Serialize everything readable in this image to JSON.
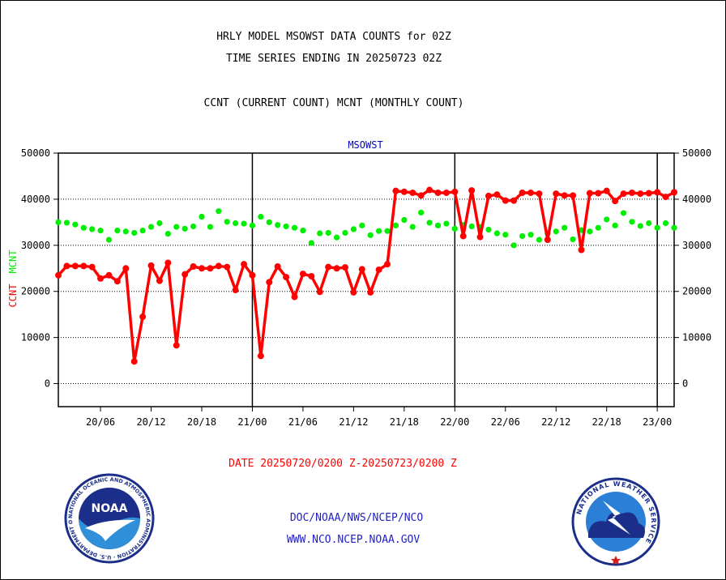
{
  "header": {
    "line1": "HRLY MODEL MSOWST DATA COUNTS for 02Z",
    "line2": "TIME SERIES ENDING IN 20250723 02Z",
    "line3": "CCNT (CURRENT COUNT) MCNT (MONTHLY COUNT)"
  },
  "footer": {
    "date_range": "DATE 20250720/0200 Z-20250723/0200 Z",
    "org": "DOC/NOAA/NWS/NCEP/NCO",
    "url": "WWW.NCO.NCEP.NOAA.GOV"
  },
  "logos": {
    "noaa": {
      "icon": "noaa-logo-icon",
      "text": "NOAA",
      "ring_text": "NATIONAL OCEANIC AND ATMOSPHERIC ADMINISTRATION · U.S. DEPARTMENT OF COMMERCE"
    },
    "nws": {
      "icon": "nws-logo-icon",
      "ring_text": "NATIONAL WEATHER SERVICE"
    }
  },
  "colors": {
    "ccnt": "#ff0000",
    "mcnt": "#00ee00",
    "station_title": "#0000cc",
    "footer_blue": "#1f1fc4",
    "date_red": "#ff0000"
  },
  "chart_data": {
    "type": "line",
    "title": "MSOWST",
    "ylabel_ccnt": "CCNT",
    "ylabel_mcnt": "MCNT",
    "ylim": [
      -5000,
      50000
    ],
    "yticks": [
      0,
      10000,
      20000,
      30000,
      40000,
      50000
    ],
    "x_unit": "hours from 20/01Z",
    "xlim": [
      0,
      73
    ],
    "xticks": [
      {
        "label": "20/06",
        "x": 5
      },
      {
        "label": "20/12",
        "x": 11
      },
      {
        "label": "20/18",
        "x": 17
      },
      {
        "label": "21/00",
        "x": 23
      },
      {
        "label": "21/06",
        "x": 29
      },
      {
        "label": "21/12",
        "x": 35
      },
      {
        "label": "21/18",
        "x": 41
      },
      {
        "label": "22/00",
        "x": 47
      },
      {
        "label": "22/06",
        "x": 53
      },
      {
        "label": "22/12",
        "x": 59
      },
      {
        "label": "22/18",
        "x": 65
      },
      {
        "label": "23/00",
        "x": 71
      }
    ],
    "day_lines": [
      23,
      47,
      71
    ],
    "grid": "horizontal-dotted",
    "series": [
      {
        "name": "CCNT",
        "color": "#ff0000",
        "x_start": 0,
        "values": [
          23500,
          25500,
          25500,
          25500,
          25300,
          22800,
          23500,
          22200,
          25000,
          4800,
          14500,
          25600,
          22300,
          26200,
          8300,
          23700,
          25400,
          25000,
          25000,
          25500,
          25300,
          20300,
          25900,
          23500,
          6000,
          22000,
          25400,
          23100,
          18800,
          23800,
          23300,
          19900,
          25300,
          25000,
          25200,
          19800,
          24800,
          19800,
          24700,
          25900,
          41800,
          41600,
          41400,
          40800,
          42000,
          41400,
          41400,
          41600,
          32000,
          41900,
          31800,
          40700,
          41000,
          39700,
          39700,
          41400,
          41400,
          41200,
          31200,
          41200,
          40800,
          40800,
          29000,
          41300,
          41300,
          41800,
          39600,
          41200,
          41400,
          41200,
          41300,
          41500,
          40500,
          41500
        ]
      },
      {
        "name": "MCNT",
        "color": "#00ee00",
        "x_start": 0,
        "values": [
          35000,
          34900,
          34500,
          33800,
          33500,
          33200,
          31200,
          33200,
          33000,
          32700,
          33200,
          34000,
          34800,
          32500,
          34000,
          33600,
          34100,
          36200,
          34000,
          37400,
          35100,
          34800,
          34700,
          34300,
          36200,
          35000,
          34400,
          34100,
          33800,
          33200,
          30500,
          32600,
          32700,
          31700,
          32700,
          33500,
          34300,
          32200,
          33100,
          33100,
          34300,
          35500,
          34000,
          37100,
          34900,
          34300,
          34700,
          33600,
          34400,
          34100,
          34000,
          33400,
          32600,
          32300,
          30000,
          32000,
          32300,
          31200,
          32600,
          33000,
          33800,
          31300,
          33300,
          33000,
          33800,
          35600,
          34300,
          37000,
          35100,
          34200,
          34800,
          33800,
          34800,
          33800
        ]
      }
    ]
  }
}
